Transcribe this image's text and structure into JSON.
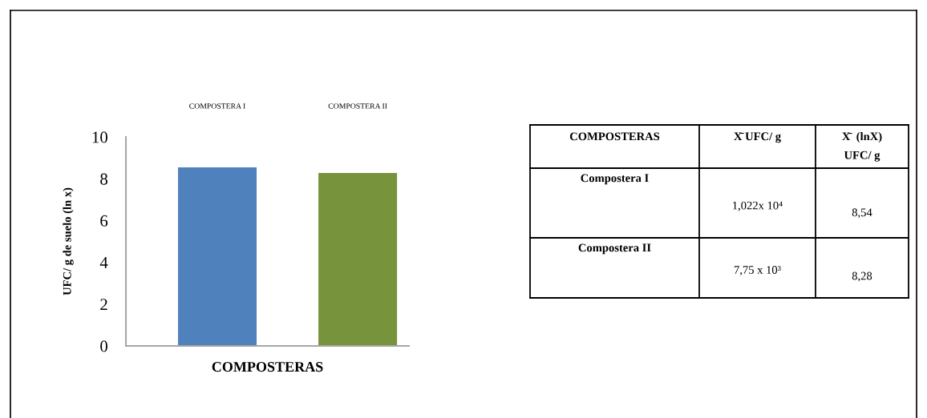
{
  "chart_data": {
    "type": "bar",
    "categories": [
      "COMPOSTERA I",
      "COMPOSTERA II"
    ],
    "values": [
      8.54,
      8.28
    ],
    "colors": [
      "#4f81bd",
      "#77933c"
    ],
    "xlabel": "COMPOSTERAS",
    "ylabel": "UFC/ g de suelo (ln x)",
    "ylim": [
      0,
      10
    ],
    "yticks": [
      0,
      2,
      4,
      6,
      8,
      10
    ],
    "annotations": [
      "COMPOSTERAS",
      "X̄ UFC/ g",
      "X̄  (lnX)\nUFC/ g",
      "Compostera I",
      "1,022x 10⁴",
      "8,54",
      "Compostera II",
      "7,75 x 10³",
      "8,28"
    ]
  }
}
